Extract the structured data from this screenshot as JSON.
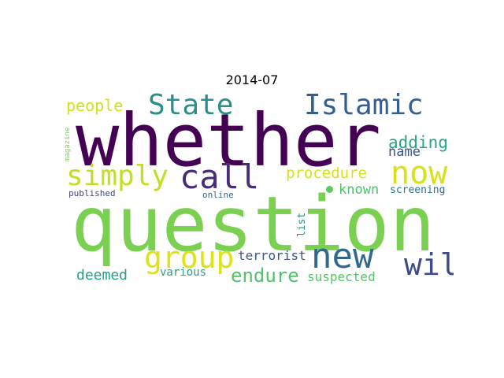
{
  "figure": {
    "title": "2014-07"
  },
  "words": {
    "whether": {
      "text": "whether",
      "color": "#440154"
    },
    "question": {
      "text": "question",
      "color": "#7ad151"
    },
    "state": {
      "text": "State",
      "color": "#2a8f8a"
    },
    "islamic": {
      "text": "Islamic",
      "color": "#355f8d"
    },
    "people": {
      "text": "people",
      "color": "#cde11d"
    },
    "simply": {
      "text": "simply",
      "color": "#c2df23"
    },
    "call": {
      "text": "call",
      "color": "#472c7a"
    },
    "now": {
      "text": "now",
      "color": "#d8e219"
    },
    "adding": {
      "text": "adding",
      "color": "#25a584"
    },
    "name": {
      "text": "name",
      "color": "#3b528b"
    },
    "procedure": {
      "text": "procedure",
      "color": "#d8e219"
    },
    "known": {
      "text": "known",
      "color": "#4ac16d"
    },
    "screening": {
      "text": "screening",
      "color": "#2c738e"
    },
    "published": {
      "text": "published",
      "color": "#414487"
    },
    "online": {
      "text": "online",
      "color": "#31668e"
    },
    "magazine": {
      "text": "magazine",
      "color": "#7ad151"
    },
    "list": {
      "text": "list",
      "color": "#21918c"
    },
    "group": {
      "text": "group",
      "color": "#dde318"
    },
    "new": {
      "text": "new",
      "color": "#31688e"
    },
    "will": {
      "text": "will",
      "color": "#3e4a89"
    },
    "terrorist": {
      "text": "terrorist",
      "color": "#39568c"
    },
    "deemed": {
      "text": "deemed",
      "color": "#25a085"
    },
    "various": {
      "text": "various",
      "color": "#2a9a87"
    },
    "endure": {
      "text": "endure",
      "color": "#4fc46a"
    },
    "suspected": {
      "text": "suspected",
      "color": "#54c568"
    },
    "dot_color": "#5ec962"
  }
}
